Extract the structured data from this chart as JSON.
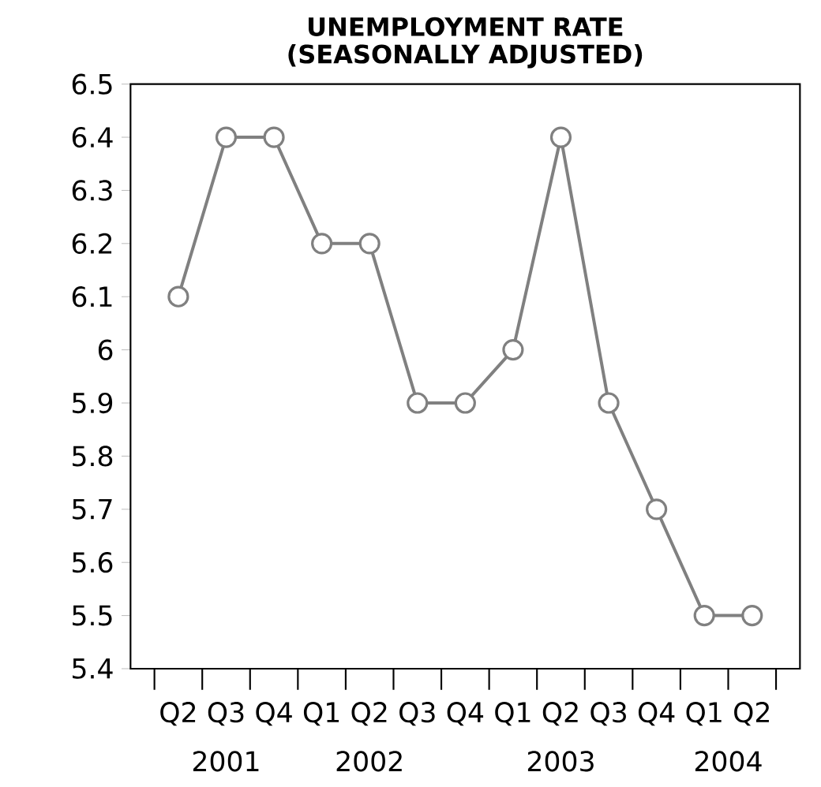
{
  "chart_data": {
    "type": "line",
    "title": "UNEMPLOYMENT  RATE\n(SEASONALLY   ADJUSTED)",
    "categories": [
      "Q2",
      "Q3",
      "Q4",
      "Q1",
      "Q2",
      "Q3",
      "Q4",
      "Q1",
      "Q2",
      "Q3",
      "Q4",
      "Q1",
      "Q2"
    ],
    "series": [
      {
        "color": "#808080",
        "values": [
          6.1,
          6.4,
          6.4,
          6.2,
          6.2,
          5.9,
          5.9,
          6.0,
          6.4,
          5.9,
          5.7,
          5.5,
          5.5
        ]
      }
    ],
    "ylim": [
      5.4,
      6.5
    ],
    "yticks": [
      5.4,
      5.5,
      5.6,
      5.7,
      5.8,
      5.9,
      6,
      6.1,
      6.2,
      6.3,
      6.4,
      6.5
    ],
    "marker": "circle",
    "line_style": "solid",
    "annotations": [
      "2001",
      "2002",
      "2003",
      "2004"
    ]
  }
}
